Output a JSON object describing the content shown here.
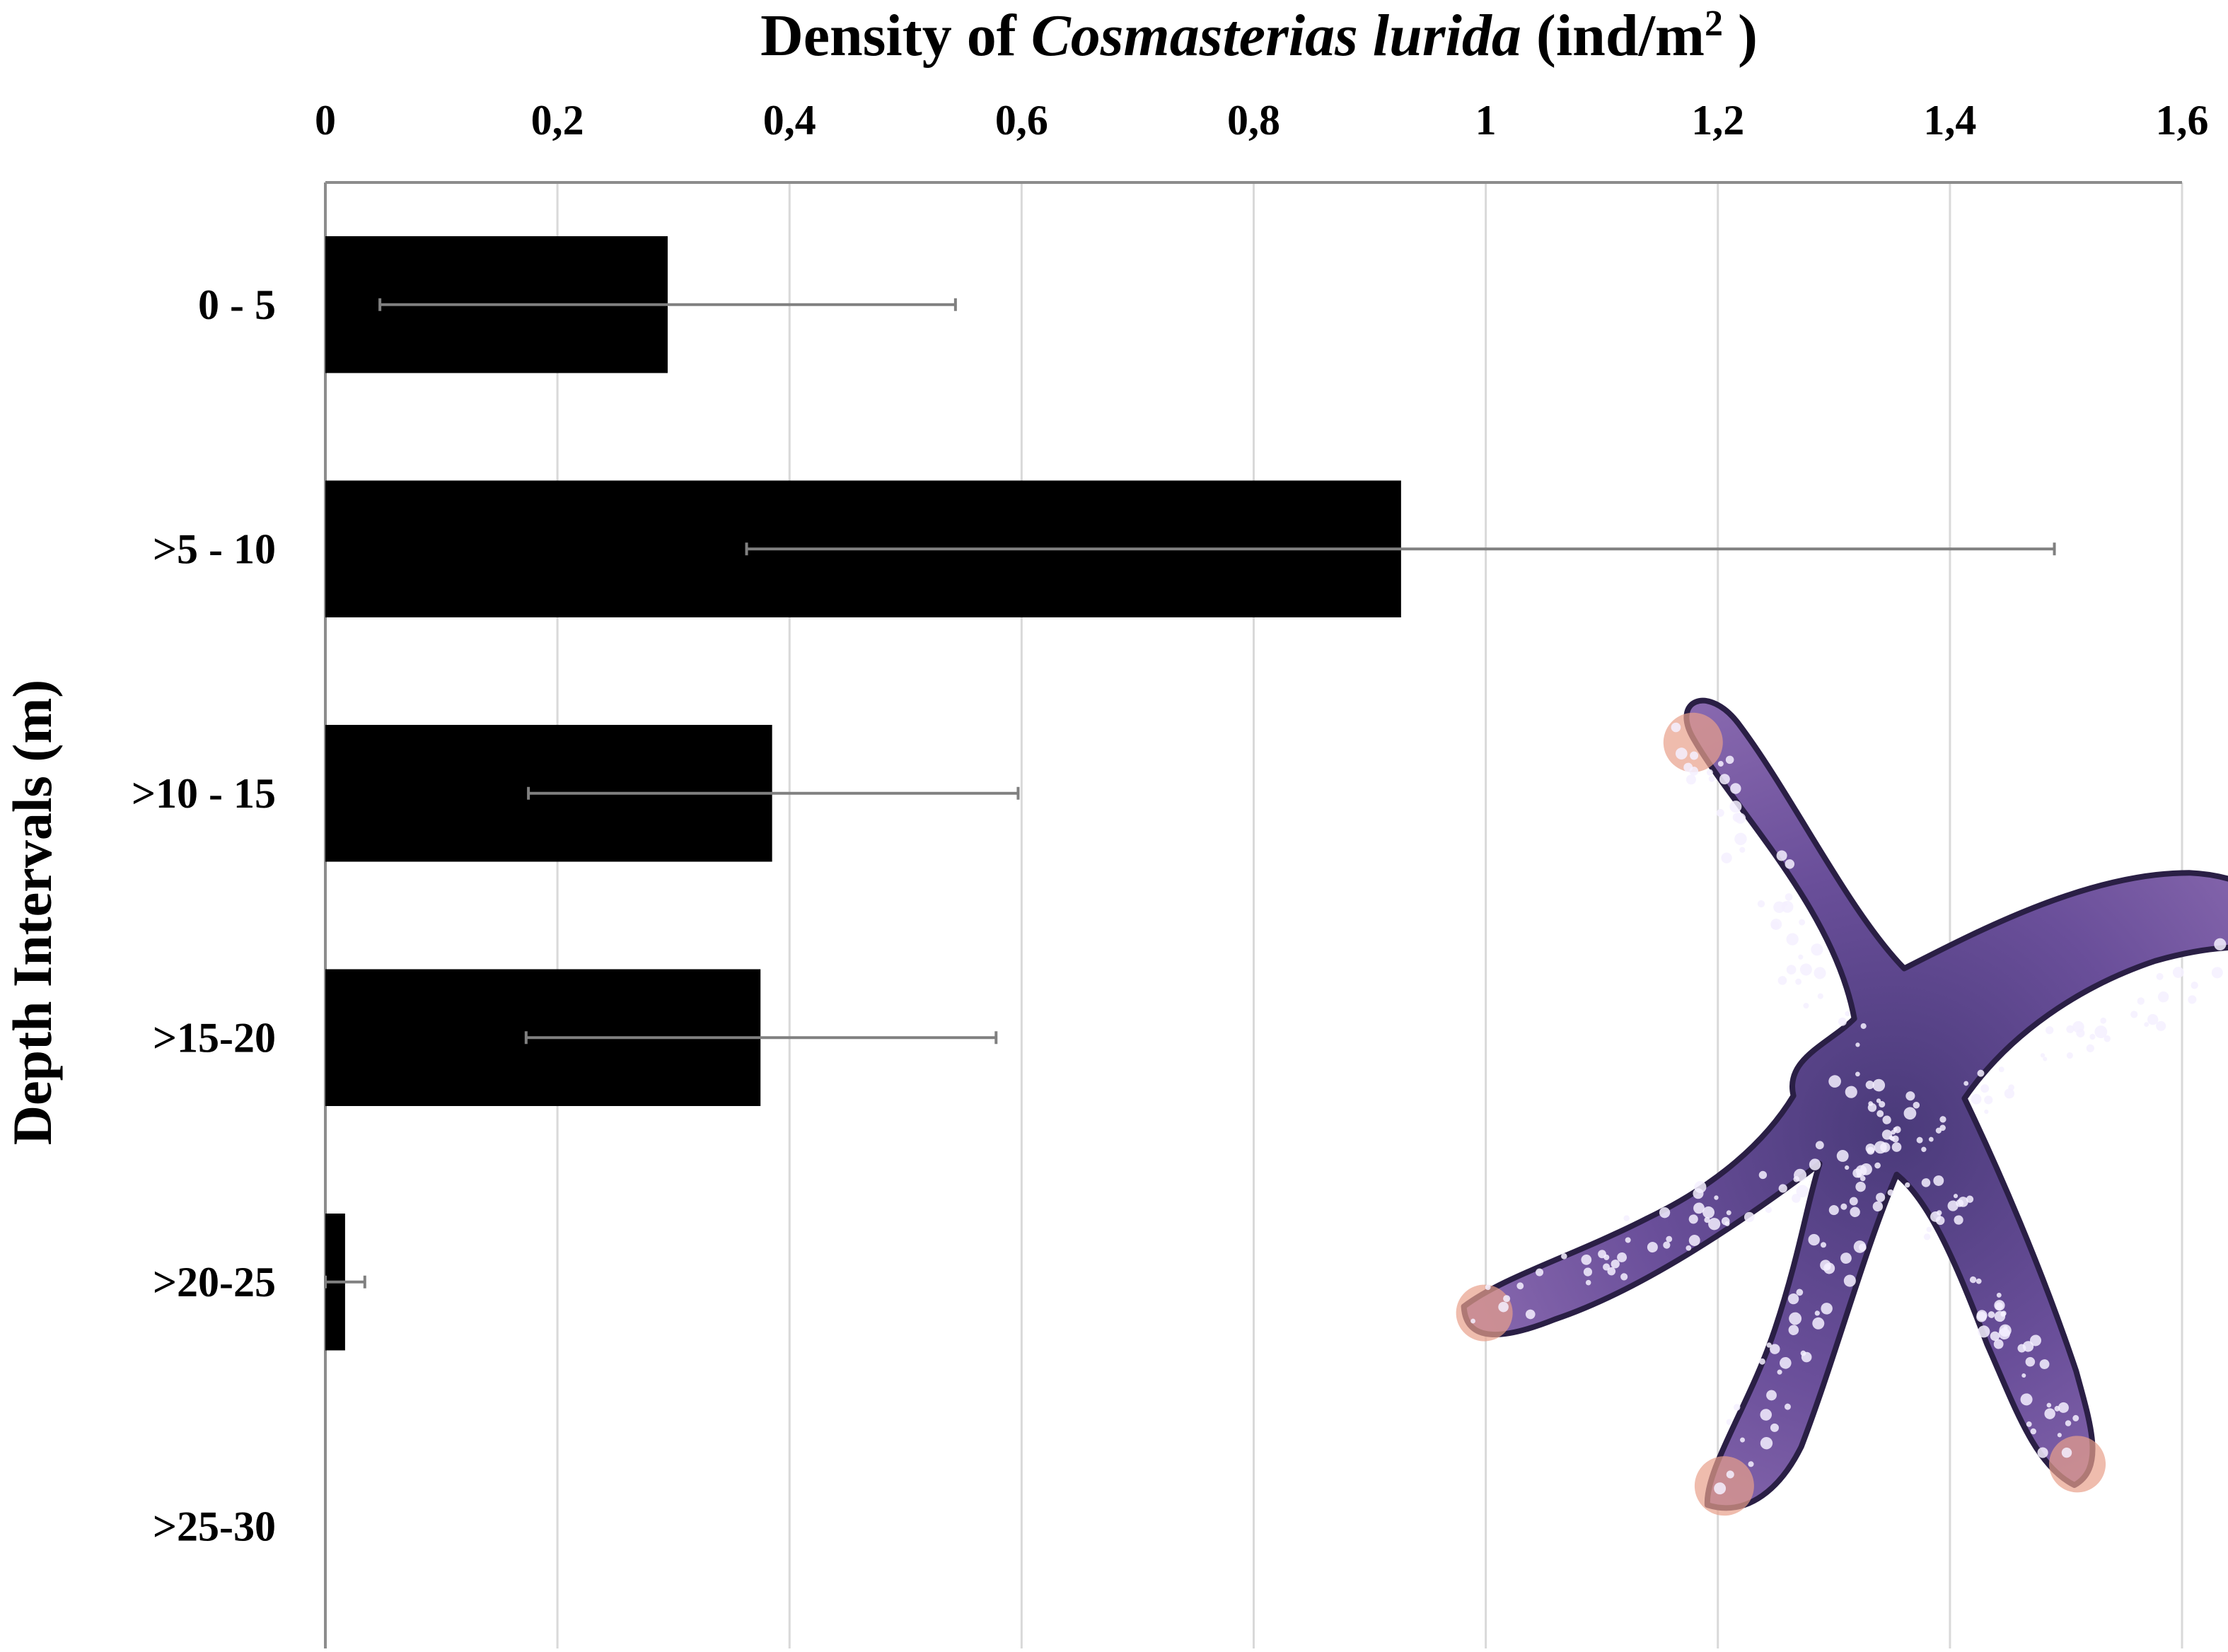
{
  "chart_data": {
    "type": "bar",
    "orientation": "horizontal",
    "title_parts": [
      "Density of ",
      "Cosmasterias lurida",
      " (ind/m",
      "2",
      " )"
    ],
    "xlabel": "",
    "ylabel": "Depth Intervals (m)",
    "x_axis_position": "top",
    "xlim": [
      0,
      1.6
    ],
    "x_ticks": [
      0,
      0.2,
      0.4,
      0.6,
      0.8,
      1.0,
      1.2,
      1.4,
      1.6
    ],
    "x_tick_labels": [
      "0",
      "0,2",
      "0,4",
      "0,6",
      "0,8",
      "1",
      "1,2",
      "1,4",
      "1,6"
    ],
    "categories": [
      "0 - 5",
      ">5 - 10",
      ">10 - 15",
      ">15-20",
      ">20-25",
      ">25-30"
    ],
    "values": [
      0.295,
      0.927,
      0.385,
      0.375,
      0.017,
      0
    ],
    "error_low": [
      0.047,
      0.363,
      0.175,
      0.173,
      0.0,
      0
    ],
    "error_high": [
      0.543,
      1.49,
      0.597,
      0.578,
      0.034,
      0
    ],
    "bar_color": "#000000",
    "error_bar_color": "#808080",
    "grid": "vertical gridlines",
    "legend": "none",
    "illustration": "starfish (Cosmasterias lurida), purple with white spots and orange arm tips"
  }
}
